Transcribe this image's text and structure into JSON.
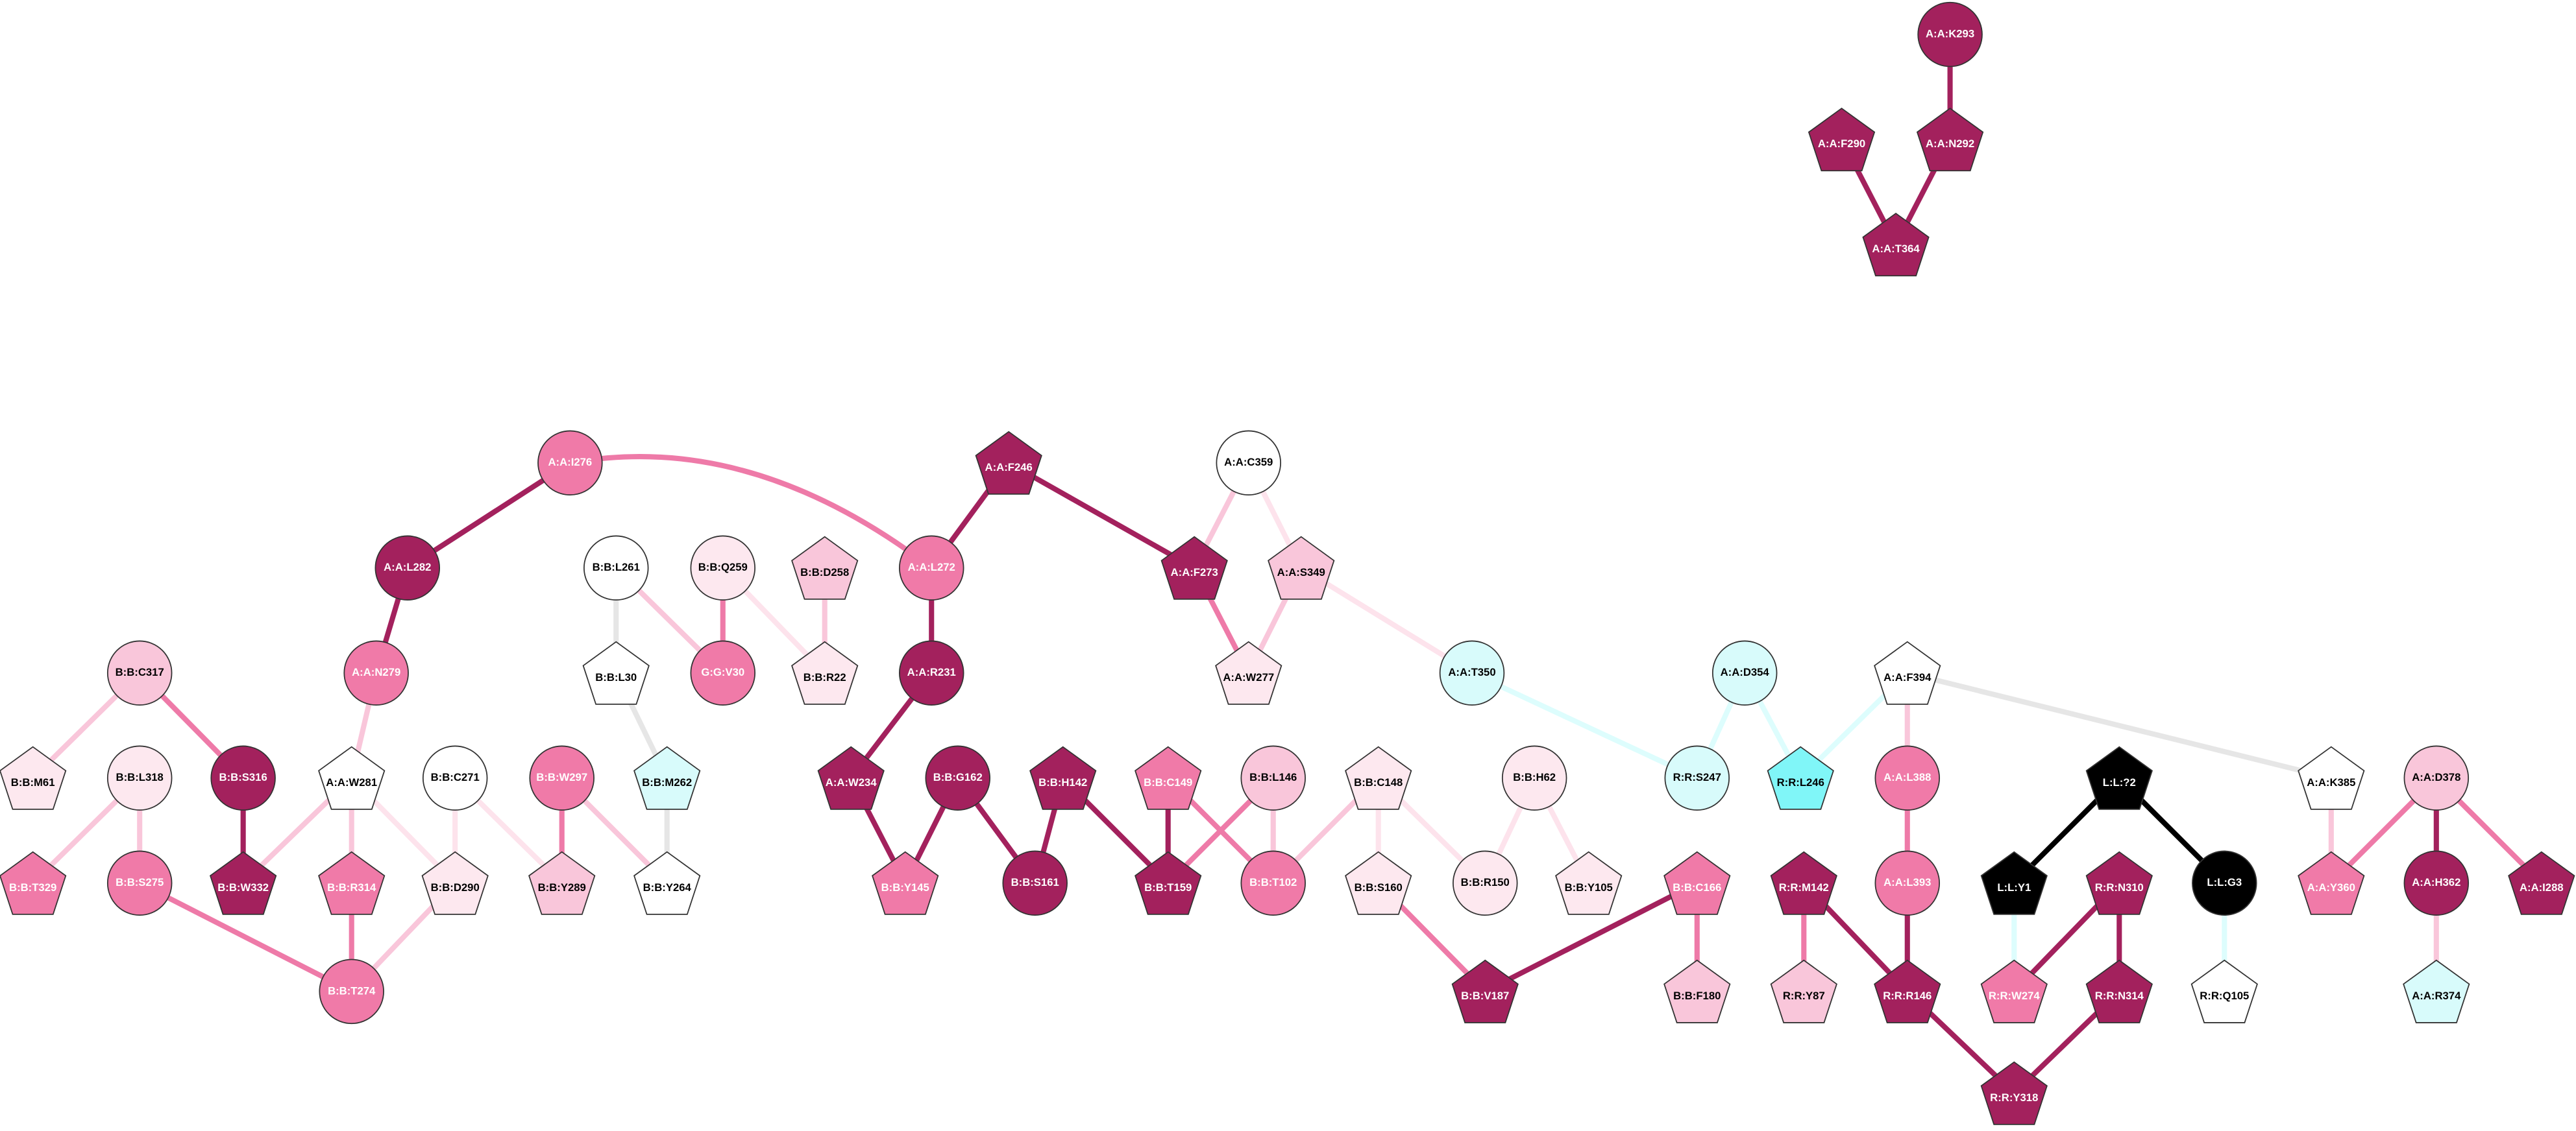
{
  "nodes": [
    {
      "label": "A:A:K293"
    },
    {
      "label": "A:A:F290"
    },
    {
      "label": "A:A:N292"
    },
    {
      "label": "A:A:T364"
    },
    {
      "label": "A:A:I276"
    },
    {
      "label": "A:A:F246"
    },
    {
      "label": "A:A:C359"
    },
    {
      "label": "A:A:L282"
    },
    {
      "label": "B:B:L261"
    },
    {
      "label": "B:B:Q259"
    },
    {
      "label": "B:B:D258"
    },
    {
      "label": "A:A:L272"
    },
    {
      "label": "A:A:F273"
    },
    {
      "label": "A:A:S349"
    },
    {
      "label": "A:A:N279"
    },
    {
      "label": "B:B:L30"
    },
    {
      "label": "G:G:V30"
    },
    {
      "label": "B:B:R22"
    },
    {
      "label": "A:A:R231"
    },
    {
      "label": "A:A:W277"
    },
    {
      "label": "A:A:T350"
    },
    {
      "label": "A:A:D354"
    },
    {
      "label": "A:A:F394"
    },
    {
      "label": "B:B:C317"
    },
    {
      "label": "B:B:M61"
    },
    {
      "label": "B:B:L318"
    },
    {
      "label": "B:B:S316"
    },
    {
      "label": "A:A:W281"
    },
    {
      "label": "B:B:C271"
    },
    {
      "label": "B:B:W297"
    },
    {
      "label": "B:B:M262"
    },
    {
      "label": "A:A:W234"
    },
    {
      "label": "B:B:G162"
    },
    {
      "label": "B:B:H142"
    },
    {
      "label": "B:B:C149"
    },
    {
      "label": "B:B:L146"
    },
    {
      "label": "B:B:C148"
    },
    {
      "label": "B:B:H62"
    },
    {
      "label": "R:R:S247"
    },
    {
      "label": "R:R:L246"
    },
    {
      "label": "A:A:L388"
    },
    {
      "label": "L:L:?2"
    },
    {
      "label": "A:A:K385"
    },
    {
      "label": "A:A:D378"
    },
    {
      "label": "B:B:T329"
    },
    {
      "label": "B:B:S275"
    },
    {
      "label": "B:B:W332"
    },
    {
      "label": "B:B:R314"
    },
    {
      "label": "B:B:D290"
    },
    {
      "label": "B:B:Y289"
    },
    {
      "label": "B:B:Y264"
    },
    {
      "label": "B:B:Y145"
    },
    {
      "label": "B:B:S161"
    },
    {
      "label": "B:B:T159"
    },
    {
      "label": "B:B:T102"
    },
    {
      "label": "B:B:S160"
    },
    {
      "label": "B:B:R150"
    },
    {
      "label": "B:B:Y105"
    },
    {
      "label": "B:B:C166"
    },
    {
      "label": "R:R:M142"
    },
    {
      "label": "A:A:L393"
    },
    {
      "label": "R:R:N310"
    },
    {
      "label": "L:L:Y1"
    },
    {
      "label": "L:L:G3"
    },
    {
      "label": "A:A:Y360"
    },
    {
      "label": "A:A:H362"
    },
    {
      "label": "A:A:I288"
    },
    {
      "label": "B:B:T274"
    },
    {
      "label": "B:B:V187"
    },
    {
      "label": "B:B:F180"
    },
    {
      "label": "R:R:Y87"
    },
    {
      "label": "R:R:R146"
    },
    {
      "label": "R:R:W274"
    },
    {
      "label": "R:R:N314"
    },
    {
      "label": "R:R:Q105"
    },
    {
      "label": "A:A:R374"
    },
    {
      "label": "R:R:Y318"
    }
  ]
}
